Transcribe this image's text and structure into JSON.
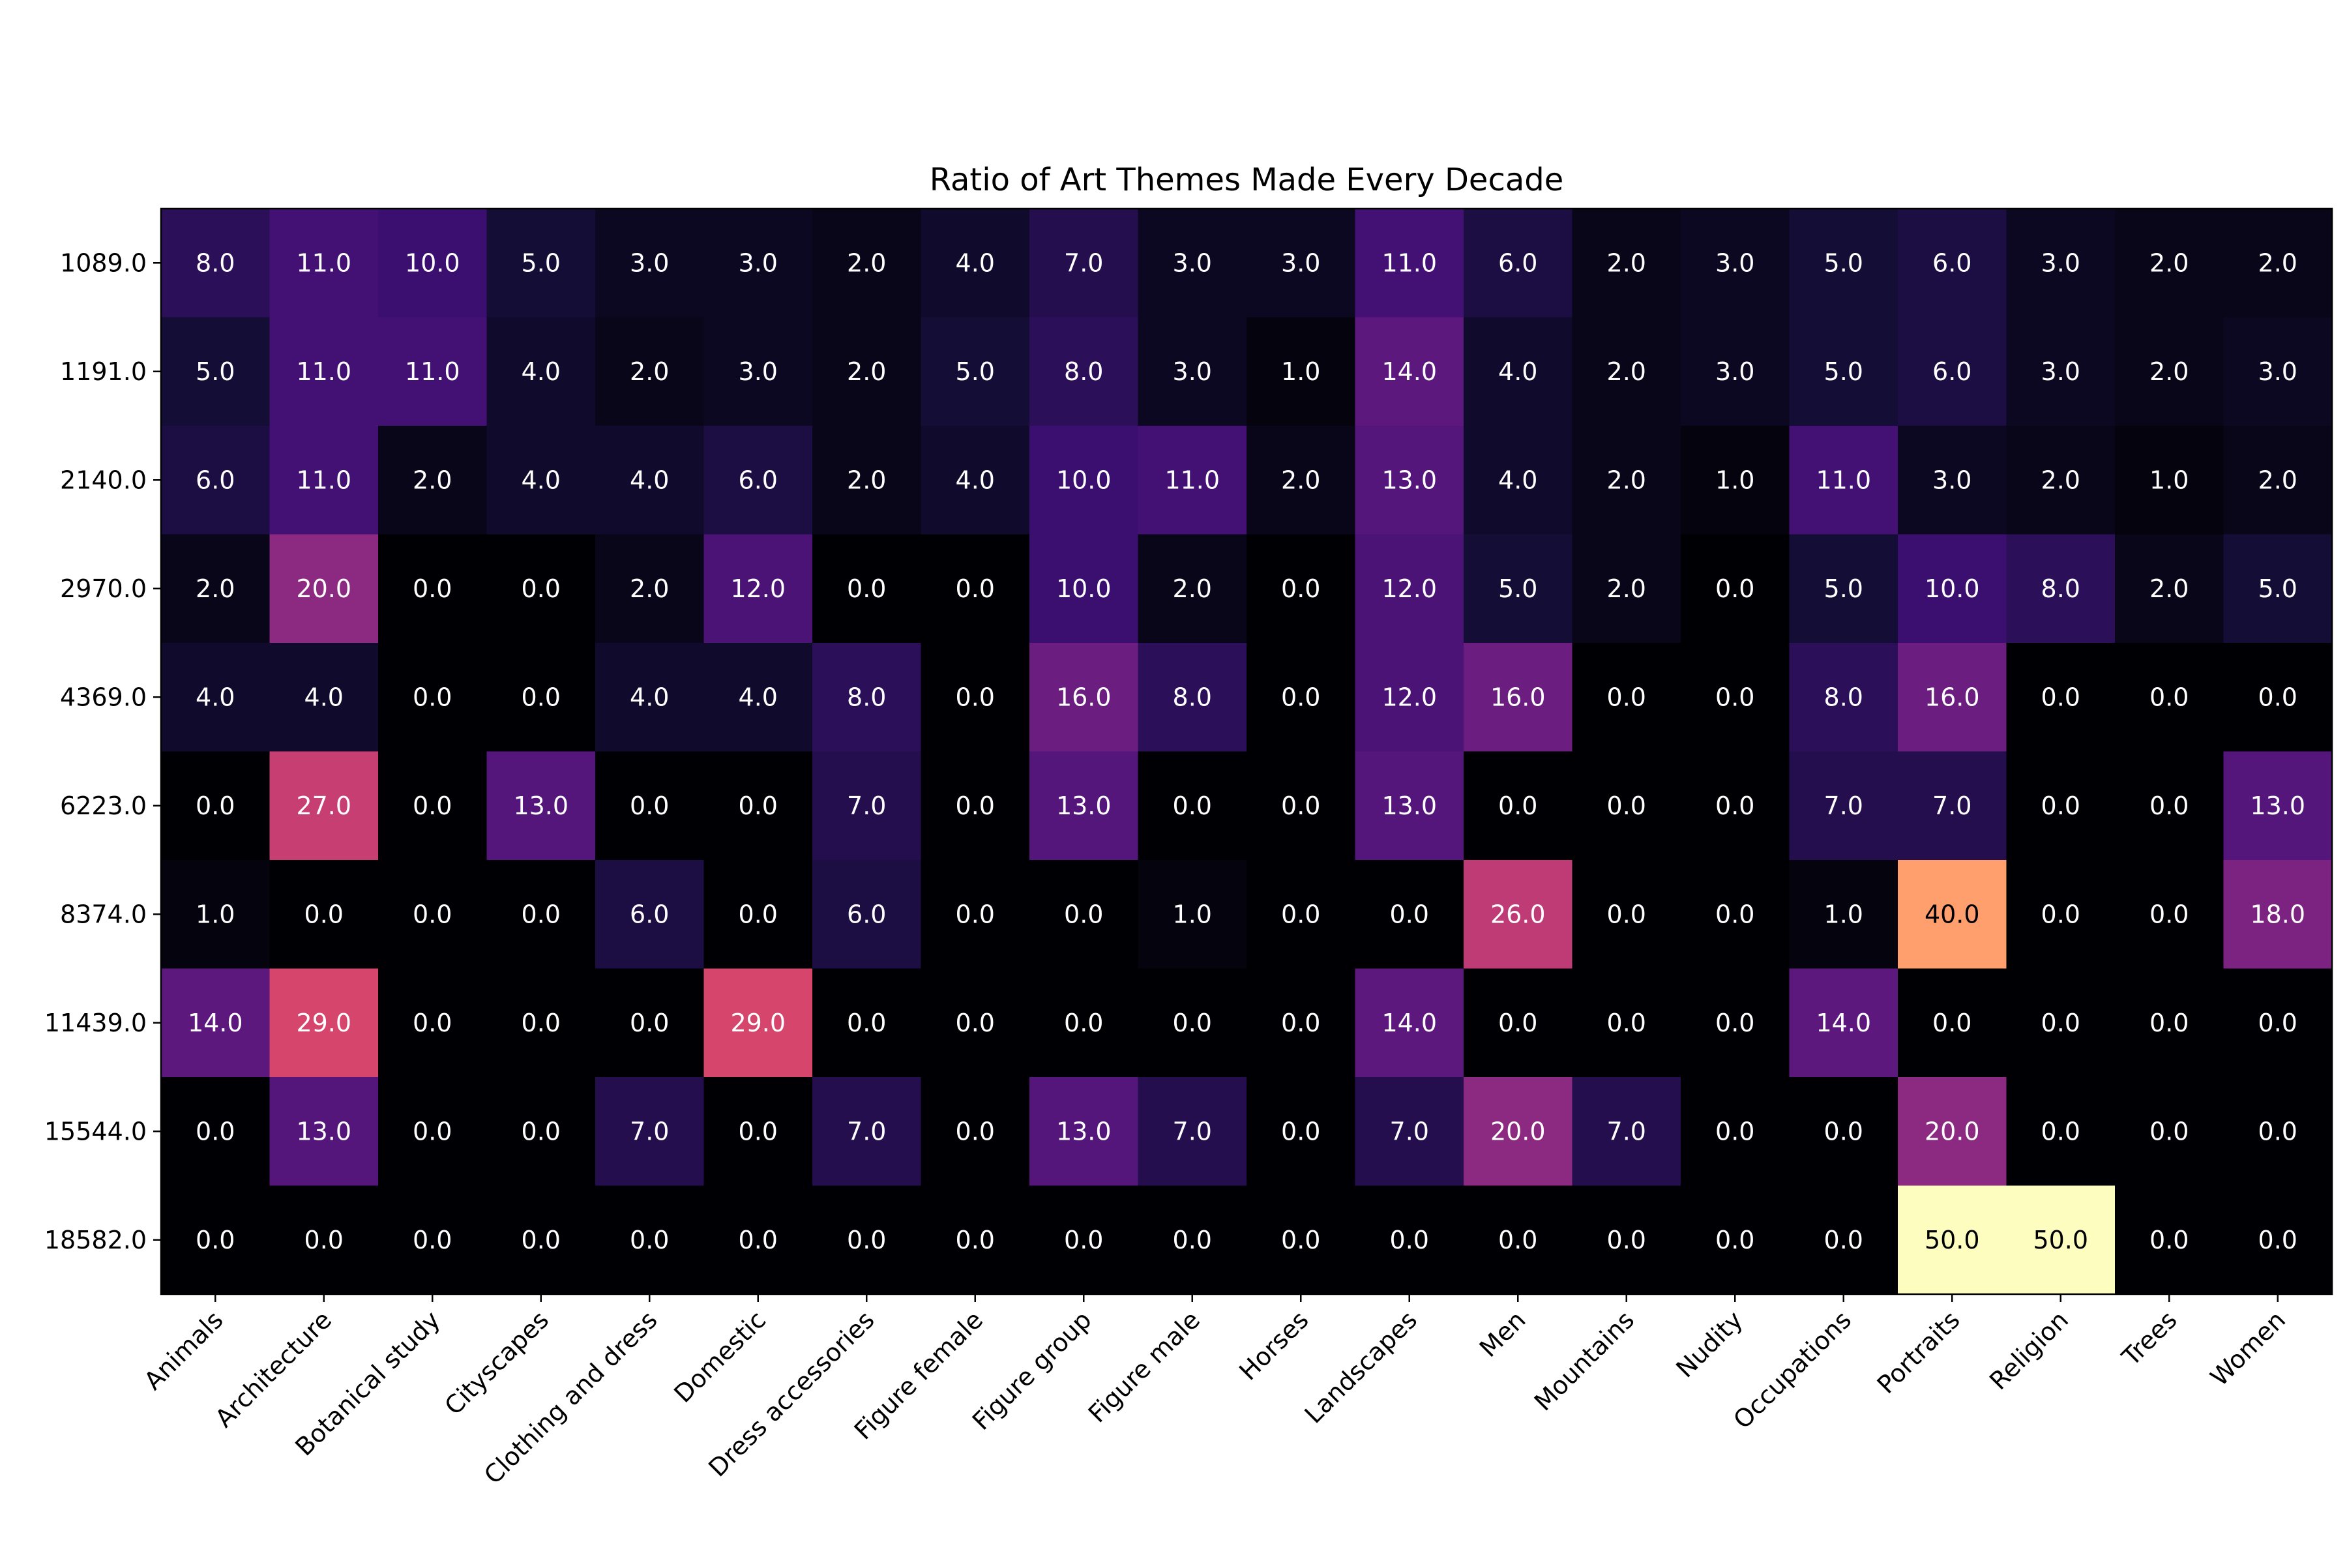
{
  "chart_data": {
    "type": "heatmap",
    "title": "Ratio of Art Themes Made Every Decade",
    "xlabel": "",
    "ylabel": "",
    "colormap": "magma",
    "value_range": [
      0,
      50
    ],
    "grid": false,
    "legend": "none",
    "x_categories": [
      "Animals",
      "Architecture",
      "Botanical study",
      "Cityscapes",
      "Clothing and dress",
      "Domestic",
      "Dress accessories",
      "Figure female",
      "Figure group",
      "Figure male",
      "Horses",
      "Landscapes",
      "Men",
      "Mountains",
      "Nudity",
      "Occupations",
      "Portraits",
      "Religion",
      "Trees",
      "Women"
    ],
    "y_categories": [
      "1089.0",
      "1191.0",
      "2140.0",
      "2970.0",
      "4369.0",
      "6223.0",
      "8374.0",
      "11439.0",
      "15544.0",
      "18582.0"
    ],
    "values": [
      [
        8,
        11,
        10,
        5,
        3,
        3,
        2,
        4,
        7,
        3,
        3,
        11,
        6,
        2,
        3,
        5,
        6,
        3,
        2,
        2
      ],
      [
        5,
        11,
        11,
        4,
        2,
        3,
        2,
        5,
        8,
        3,
        1,
        14,
        4,
        2,
        3,
        5,
        6,
        3,
        2,
        3
      ],
      [
        6,
        11,
        2,
        4,
        4,
        6,
        2,
        4,
        10,
        11,
        2,
        13,
        4,
        2,
        1,
        11,
        3,
        2,
        1,
        2
      ],
      [
        2,
        20,
        0,
        0,
        2,
        12,
        0,
        0,
        10,
        2,
        0,
        12,
        5,
        2,
        0,
        5,
        10,
        8,
        2,
        5
      ],
      [
        4,
        4,
        0,
        0,
        4,
        4,
        8,
        0,
        16,
        8,
        0,
        12,
        16,
        0,
        0,
        8,
        16,
        0,
        0,
        0
      ],
      [
        0,
        27,
        0,
        13,
        0,
        0,
        7,
        0,
        13,
        0,
        0,
        13,
        0,
        0,
        0,
        7,
        7,
        0,
        0,
        13
      ],
      [
        1,
        0,
        0,
        0,
        6,
        0,
        6,
        0,
        0,
        1,
        0,
        0,
        26,
        0,
        0,
        1,
        40,
        0,
        0,
        18
      ],
      [
        14,
        29,
        0,
        0,
        0,
        29,
        0,
        0,
        0,
        0,
        0,
        14,
        0,
        0,
        0,
        14,
        0,
        0,
        0,
        0
      ],
      [
        0,
        13,
        0,
        0,
        7,
        0,
        7,
        0,
        13,
        7,
        0,
        7,
        20,
        7,
        0,
        0,
        20,
        0,
        0,
        0
      ],
      [
        0,
        0,
        0,
        0,
        0,
        0,
        0,
        0,
        0,
        0,
        0,
        0,
        0,
        0,
        0,
        0,
        50,
        50,
        0,
        0
      ]
    ]
  }
}
